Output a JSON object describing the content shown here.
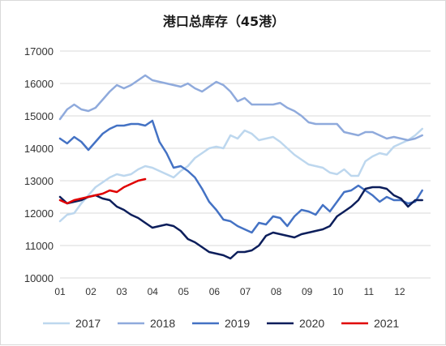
{
  "chart_data": {
    "type": "line",
    "title": "港口总库存（45港）",
    "xlabel": "",
    "ylabel": "",
    "ylim": [
      10000,
      17000
    ],
    "yticks": [
      "17000",
      "16000",
      "15000",
      "14000",
      "13000",
      "12000",
      "11000",
      "10000"
    ],
    "xticks": [
      "01",
      "02",
      "03",
      "04",
      "05",
      "06",
      "07",
      "08",
      "09",
      "10",
      "11",
      "12"
    ],
    "grid": true,
    "legend": "bottom",
    "x_domain": [
      1,
      13
    ],
    "series": [
      {
        "name": "2017",
        "color": "#bdd7ee",
        "x": [
          1,
          1.23,
          1.46,
          1.69,
          1.92,
          2.15,
          2.38,
          2.61,
          2.84,
          3.07,
          3.3,
          3.53,
          3.76,
          3.99,
          4.22,
          4.45,
          4.68,
          4.91,
          5.14,
          5.37,
          5.6,
          5.83,
          6.06,
          6.29,
          6.52,
          6.75,
          6.98,
          7.21,
          7.44,
          7.67,
          7.9,
          8.13,
          8.36,
          8.59,
          8.82,
          9.05,
          9.28,
          9.51,
          9.74,
          9.97,
          10.2,
          10.43,
          10.66,
          10.89,
          11.12,
          11.35,
          11.58,
          11.81,
          12.04,
          12.27,
          12.5,
          12.73
        ],
        "values": [
          11750,
          11950,
          12000,
          12300,
          12550,
          12800,
          12950,
          13100,
          13200,
          13150,
          13200,
          13350,
          13450,
          13400,
          13300,
          13200,
          13100,
          13300,
          13450,
          13700,
          13850,
          14000,
          14050,
          14000,
          14400,
          14300,
          14550,
          14450,
          14250,
          14300,
          14350,
          14200,
          14000,
          13800,
          13650,
          13500,
          13450,
          13400,
          13250,
          13200,
          13350,
          13150,
          13150,
          13600,
          13750,
          13850,
          13800,
          14050,
          14150,
          14250,
          14400,
          14600
        ]
      },
      {
        "name": "2018",
        "color": "#8faadc",
        "x": [
          1,
          1.23,
          1.46,
          1.69,
          1.92,
          2.15,
          2.38,
          2.61,
          2.84,
          3.07,
          3.3,
          3.53,
          3.76,
          3.99,
          4.22,
          4.45,
          4.68,
          4.91,
          5.14,
          5.37,
          5.6,
          5.83,
          6.06,
          6.29,
          6.52,
          6.75,
          6.98,
          7.21,
          7.44,
          7.67,
          7.9,
          8.13,
          8.36,
          8.59,
          8.82,
          9.05,
          9.28,
          9.51,
          9.74,
          9.97,
          10.2,
          10.43,
          10.66,
          10.89,
          11.12,
          11.35,
          11.58,
          11.81,
          12.04,
          12.27,
          12.5,
          12.73
        ],
        "values": [
          14900,
          15200,
          15350,
          15200,
          15150,
          15250,
          15500,
          15750,
          15950,
          15850,
          15950,
          16100,
          16250,
          16100,
          16050,
          16000,
          15950,
          15900,
          16000,
          15850,
          15750,
          15900,
          16050,
          15950,
          15750,
          15450,
          15550,
          15350,
          15350,
          15350,
          15350,
          15400,
          15250,
          15150,
          15000,
          14800,
          14750,
          14750,
          14750,
          14750,
          14500,
          14450,
          14400,
          14500,
          14500,
          14400,
          14300,
          14350,
          14300,
          14250,
          14300,
          14400
        ]
      },
      {
        "name": "2019",
        "color": "#4472c4",
        "x": [
          1,
          1.23,
          1.46,
          1.69,
          1.92,
          2.15,
          2.38,
          2.61,
          2.84,
          3.07,
          3.3,
          3.53,
          3.76,
          3.99,
          4.22,
          4.45,
          4.68,
          4.91,
          5.14,
          5.37,
          5.6,
          5.83,
          6.06,
          6.29,
          6.52,
          6.75,
          6.98,
          7.21,
          7.44,
          7.67,
          7.9,
          8.13,
          8.36,
          8.59,
          8.82,
          9.05,
          9.28,
          9.51,
          9.74,
          9.97,
          10.2,
          10.43,
          10.66,
          10.89,
          11.12,
          11.35,
          11.58,
          11.81,
          12.04,
          12.27,
          12.5,
          12.73
        ],
        "values": [
          14300,
          14150,
          14350,
          14200,
          13950,
          14200,
          14450,
          14600,
          14700,
          14700,
          14750,
          14750,
          14700,
          14850,
          14200,
          13850,
          13400,
          13450,
          13300,
          13100,
          12750,
          12350,
          12100,
          11800,
          11750,
          11600,
          11500,
          11400,
          11700,
          11650,
          11900,
          11850,
          11600,
          11900,
          12100,
          12050,
          11950,
          12250,
          12050,
          12350,
          12650,
          12700,
          12850,
          12700,
          12550,
          12350,
          12500,
          12400,
          12400,
          12300,
          12350,
          12700
        ]
      },
      {
        "name": "2020",
        "color": "#0c1e5b",
        "x": [
          1,
          1.23,
          1.46,
          1.69,
          1.92,
          2.15,
          2.38,
          2.61,
          2.84,
          3.07,
          3.3,
          3.53,
          3.76,
          3.99,
          4.22,
          4.45,
          4.68,
          4.91,
          5.14,
          5.37,
          5.6,
          5.83,
          6.06,
          6.29,
          6.52,
          6.75,
          6.98,
          7.21,
          7.44,
          7.67,
          7.9,
          8.13,
          8.36,
          8.59,
          8.82,
          9.05,
          9.28,
          9.51,
          9.74,
          9.97,
          10.2,
          10.43,
          10.66,
          10.89,
          11.12,
          11.35,
          11.58,
          11.81,
          12.04,
          12.27,
          12.5,
          12.73
        ],
        "values": [
          12500,
          12300,
          12350,
          12400,
          12500,
          12550,
          12450,
          12400,
          12200,
          12100,
          11950,
          11850,
          11700,
          11550,
          11600,
          11650,
          11600,
          11450,
          11200,
          11100,
          10950,
          10800,
          10750,
          10700,
          10600,
          10800,
          10800,
          10850,
          11000,
          11300,
          11400,
          11350,
          11300,
          11250,
          11350,
          11400,
          11450,
          11500,
          11600,
          11900,
          12050,
          12200,
          12400,
          12750,
          12800,
          12800,
          12750,
          12550,
          12450,
          12200,
          12400,
          12400
        ]
      },
      {
        "name": "2021",
        "color": "#e00000",
        "x": [
          1,
          1.23,
          1.46,
          1.69,
          1.92,
          2.15,
          2.38,
          2.61,
          2.84,
          3.07,
          3.3,
          3.53,
          3.76
        ],
        "values": [
          12400,
          12300,
          12400,
          12450,
          12500,
          12550,
          12600,
          12700,
          12650,
          12800,
          12900,
          13000,
          13050
        ]
      }
    ]
  }
}
